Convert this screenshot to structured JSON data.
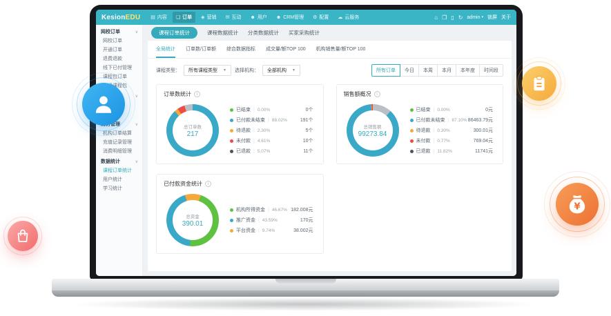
{
  "topbar": {
    "logo_kesion": "Kesion",
    "logo_edu": "EDU",
    "nav": [
      {
        "label": "内容",
        "icon": "content-icon",
        "glyph": "▤"
      },
      {
        "label": "订单",
        "icon": "order-icon",
        "glyph": "❏",
        "active": true
      },
      {
        "label": "营销",
        "icon": "marketing-icon",
        "glyph": "◈"
      },
      {
        "label": "互动",
        "icon": "interaction-icon",
        "glyph": "✉"
      },
      {
        "label": "用户",
        "icon": "user-icon",
        "glyph": "☻"
      },
      {
        "label": "CRM管理",
        "icon": "crm-icon",
        "glyph": "☻"
      },
      {
        "label": "配置",
        "icon": "settings-icon",
        "glyph": "⚙"
      },
      {
        "label": "云服务",
        "icon": "cloud-icon",
        "glyph": "☁"
      }
    ],
    "right": {
      "user": "admin",
      "link1": "锁屏",
      "link2": "关于"
    }
  },
  "sidebar": {
    "sections": [
      {
        "header": "网校订单",
        "items": [
          "网校订单",
          "开通订单",
          "退费退款",
          "线下已付管理",
          "课程包订单",
          "开通课程包"
        ]
      },
      {
        "header": "",
        "items": [
          "",
          ""
        ]
      },
      {
        "header": "财务管理",
        "items": [
          "机构订单结算",
          "充值记录管理",
          "消费明细管理"
        ]
      },
      {
        "header": "数据统计",
        "items": [
          "课程订单统计",
          "用户统计",
          "学习统计"
        ],
        "active": "课程订单统计"
      }
    ]
  },
  "main": {
    "page_tabs": [
      {
        "label": "课程订单统计",
        "active": true
      },
      {
        "label": "课程数据统计"
      },
      {
        "label": "分类数据统计"
      },
      {
        "label": "买家采购统计"
      }
    ],
    "sub_tabs": [
      {
        "label": "全局统计",
        "active": true
      },
      {
        "label": "订单数/订单额"
      },
      {
        "label": "综合数据指标"
      },
      {
        "label": "成交量/额TOP 100"
      },
      {
        "label": "机构销售量/额TOP 100"
      }
    ],
    "filters": {
      "course_type_label": "课程类型：",
      "course_type_value": "所有课程类型",
      "org_label": "选择机构：",
      "org_value": "全部机构"
    },
    "range_buttons": [
      {
        "label": "所有订单",
        "active": true
      },
      {
        "label": "今日"
      },
      {
        "label": "本周"
      },
      {
        "label": "本月"
      },
      {
        "label": "本年度"
      },
      {
        "label": "时间段"
      }
    ],
    "cards": [
      {
        "title": "订单数统计",
        "center_label": "总订单数",
        "center_value": "217",
        "ring_from": 0,
        "ring": [
          {
            "color": "#3aa9c8",
            "pct": 88.02
          },
          {
            "color": "#f6a93b",
            "pct": 2.3
          },
          {
            "color": "#ef4b45",
            "pct": 4.61
          },
          {
            "color": "#b9c0c5",
            "pct": 5.07
          }
        ],
        "legend": [
          {
            "label": "已结束",
            "percent": "0.00%",
            "value": "0个",
            "color": "#5fc142"
          },
          {
            "label": "已付款未结束",
            "percent": "88.02%",
            "value": "191个",
            "color": "#3aa9c8"
          },
          {
            "label": "待退款",
            "percent": "2.30%",
            "value": "5个",
            "color": "#f6a93b"
          },
          {
            "label": "未付款",
            "percent": "4.61%",
            "value": "10个",
            "color": "#ef4b45"
          },
          {
            "label": "已退款",
            "percent": "5.07%",
            "value": "11个",
            "color": "#4a5560"
          }
        ]
      },
      {
        "title": "销售额概况",
        "center_label": "总销售额",
        "center_value": "99273.84",
        "ring_from": 0,
        "ring": [
          {
            "color": "#b9c0c5",
            "pct": 11.82
          },
          {
            "color": "#3aa9c8",
            "pct": 87.1
          },
          {
            "color": "#f6a93b",
            "pct": 0.3
          },
          {
            "color": "#ef4b45",
            "pct": 0.78
          }
        ],
        "legend": [
          {
            "label": "已结束",
            "percent": "0.00%",
            "value": "0元",
            "color": "#5fc142"
          },
          {
            "label": "已付款未结束",
            "percent": "87.10%",
            "value": "86463.79元",
            "color": "#3aa9c8"
          },
          {
            "label": "待退款",
            "percent": "0.30%",
            "value": "300.01元",
            "color": "#f6a93b"
          },
          {
            "label": "未付款",
            "percent": "0.77%",
            "value": "769.04元",
            "color": "#ef4b45"
          },
          {
            "label": "已退款",
            "percent": "11.82%",
            "value": "11741元",
            "color": "#4a5560"
          }
        ]
      },
      {
        "title": "已付款资金统计",
        "center_label": "总资金",
        "center_value": "390.01",
        "ring_from": 343,
        "ring": [
          {
            "color": "#f6a93b",
            "pct": 9.74
          },
          {
            "color": "#5fc142",
            "pct": 46.67
          },
          {
            "color": "#3aa9c8",
            "pct": 43.59
          }
        ],
        "legend": [
          {
            "label": "机构所得资金",
            "percent": "46.67%",
            "value": "182.008元",
            "color": "#5fc142"
          },
          {
            "label": "推广资金",
            "percent": "43.59%",
            "value": "170元",
            "color": "#3aa9c8"
          },
          {
            "label": "平台资金",
            "percent": "9.74%",
            "value": "38.002元",
            "color": "#f6a93b"
          }
        ]
      }
    ]
  },
  "chart_data": [
    {
      "type": "pie",
      "title": "订单数统计",
      "center": {
        "label": "总订单数",
        "value": 217
      },
      "categories": [
        "已结束",
        "已付款未结束",
        "待退款",
        "未付款",
        "已退款"
      ],
      "values": [
        0,
        191,
        5,
        10,
        11
      ],
      "percents": [
        0.0,
        88.02,
        2.3,
        4.61,
        5.07
      ],
      "unit": "个",
      "legend_position": "right"
    },
    {
      "type": "pie",
      "title": "销售额概况",
      "center": {
        "label": "总销售额",
        "value": 99273.84
      },
      "categories": [
        "已结束",
        "已付款未结束",
        "待退款",
        "未付款",
        "已退款"
      ],
      "values": [
        0,
        86463.79,
        300.01,
        769.04,
        11741
      ],
      "percents": [
        0.0,
        87.1,
        0.3,
        0.77,
        11.82
      ],
      "unit": "元",
      "legend_position": "right"
    },
    {
      "type": "pie",
      "title": "已付款资金统计",
      "center": {
        "label": "总资金",
        "value": 390.01
      },
      "categories": [
        "机构所得资金",
        "推广资金",
        "平台资金"
      ],
      "values": [
        182.008,
        170,
        38.002
      ],
      "percents": [
        46.67,
        43.59,
        9.74
      ],
      "unit": "元",
      "legend_position": "right"
    }
  ]
}
